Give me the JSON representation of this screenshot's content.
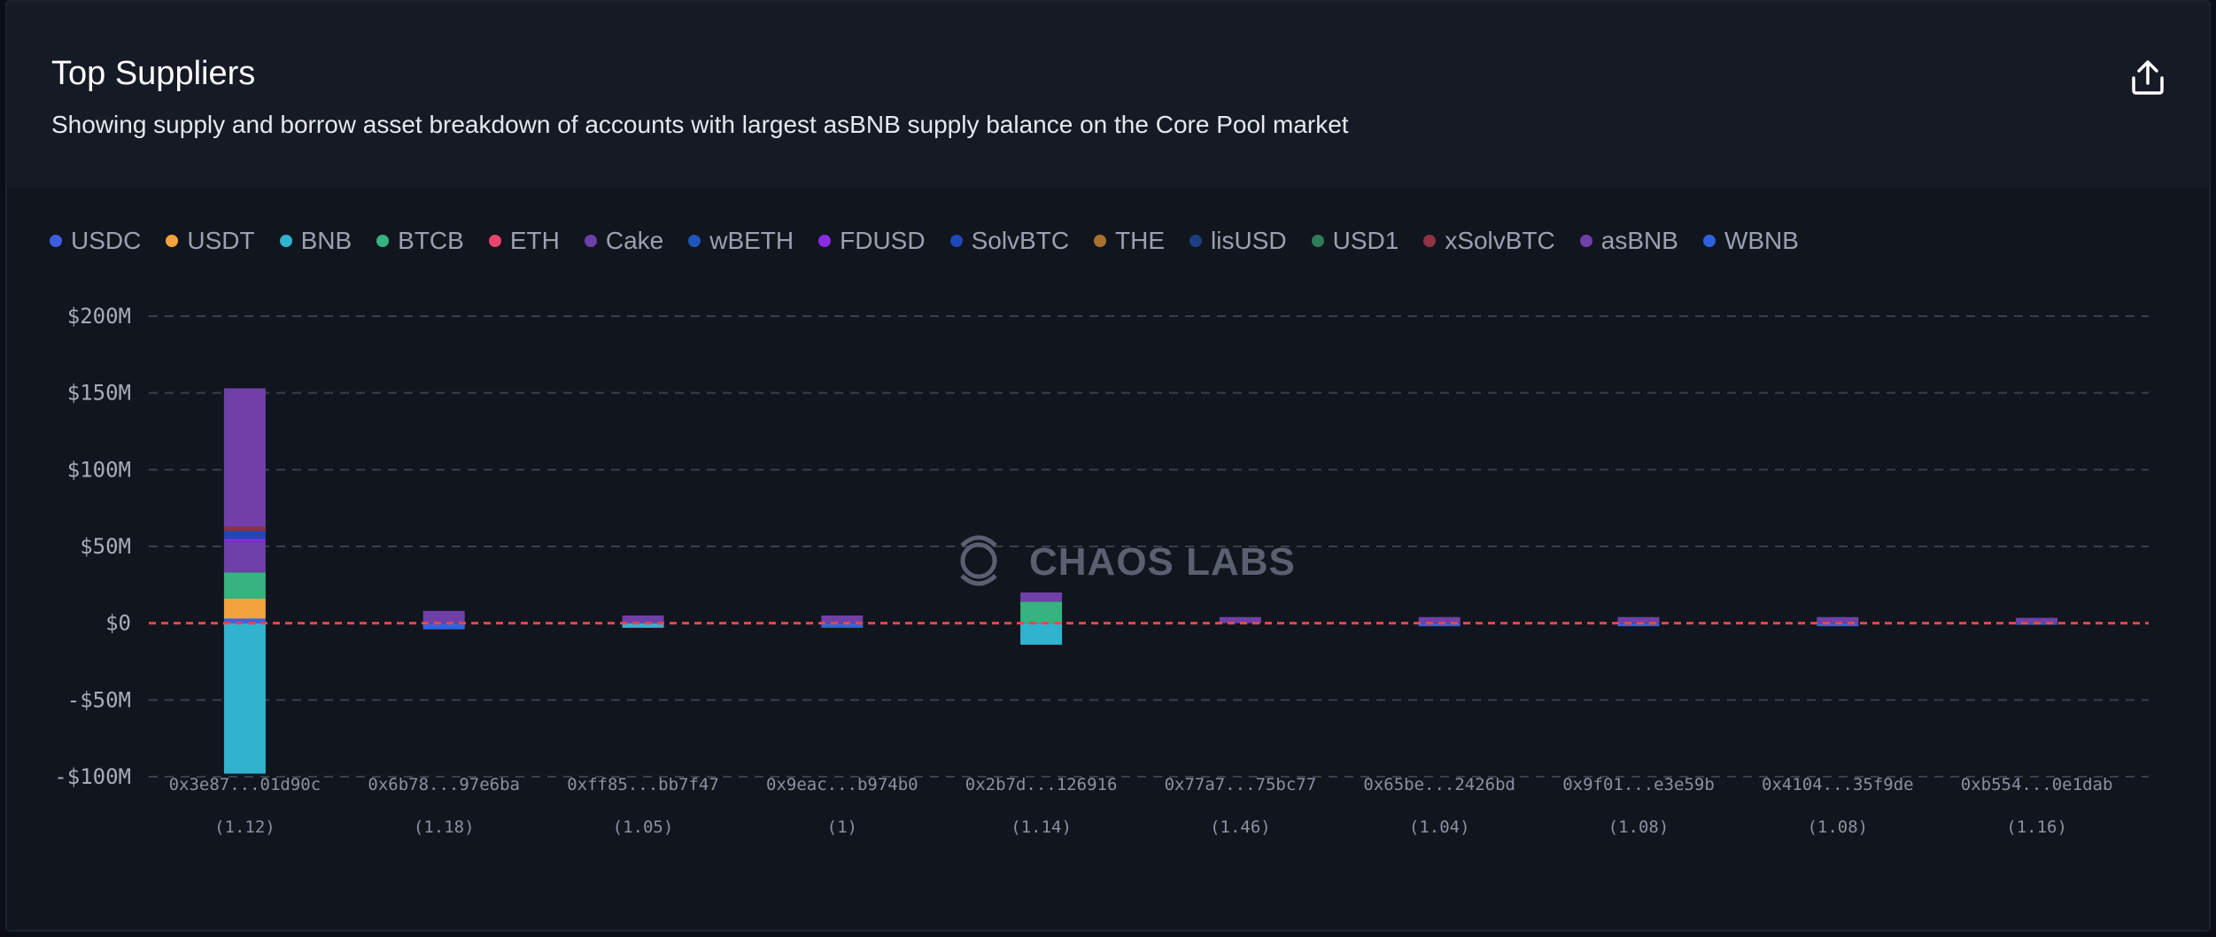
{
  "header": {
    "title": "Top Suppliers",
    "subtitle": "Showing supply and borrow asset breakdown of accounts with largest asBNB supply balance on the Core Pool market",
    "share_icon": "share-upload-icon"
  },
  "watermark": "CHAOS LABS",
  "legend": [
    {
      "name": "USDC",
      "color": "#3b5fe0"
    },
    {
      "name": "USDT",
      "color": "#f3a33b"
    },
    {
      "name": "BNB",
      "color": "#2fb3cf"
    },
    {
      "name": "BTCB",
      "color": "#36b37e"
    },
    {
      "name": "ETH",
      "color": "#e5456a"
    },
    {
      "name": "Cake",
      "color": "#6e3fa8"
    },
    {
      "name": "wBETH",
      "color": "#1e56b8"
    },
    {
      "name": "FDUSD",
      "color": "#8a2be2"
    },
    {
      "name": "SolvBTC",
      "color": "#1f48b8"
    },
    {
      "name": "THE",
      "color": "#a8722e"
    },
    {
      "name": "lisUSD",
      "color": "#1d3f80"
    },
    {
      "name": "USD1",
      "color": "#2e7d57"
    },
    {
      "name": "xSolvBTC",
      "color": "#8e3346"
    },
    {
      "name": "asBNB",
      "color": "#7040a8"
    },
    {
      "name": "WBNB",
      "color": "#2f62e0"
    }
  ],
  "chart_data": {
    "type": "bar",
    "stacked": true,
    "title": "Top Suppliers",
    "ylim": [
      -100000000,
      200000000
    ],
    "yticks": [
      200000000,
      150000000,
      100000000,
      50000000,
      0,
      -50000000,
      -100000000
    ],
    "ytick_labels": [
      "$200M",
      "$150M",
      "$100M",
      "$50M",
      "$0",
      "-$50M",
      "-$100M"
    ],
    "categories": [
      "0x3e87...01d90c",
      "0x6b78...97e6ba",
      "0xff85...bb7f47",
      "0x9eac...b974b0",
      "0x2b7d...126916",
      "0x77a7...75bc77",
      "0x65be...2426bd",
      "0x9f01...e3e59b",
      "0x4104...35f9de",
      "0xb554...0e1dab"
    ],
    "health_factors": [
      "(1.12)",
      "(1.18)",
      "(1.05)",
      "(1)",
      "(1.14)",
      "(1.46)",
      "(1.04)",
      "(1.08)",
      "(1.08)",
      "(1.16)"
    ],
    "zero_line": "red dashed",
    "grid": true,
    "legend_position": "top-left",
    "series": [
      {
        "name": "USDC",
        "values": [
          3000000,
          0,
          0,
          0,
          0,
          0,
          0,
          0,
          0,
          0
        ]
      },
      {
        "name": "USDT",
        "values": [
          13000000,
          0,
          0,
          0,
          0,
          0,
          0,
          0,
          0,
          0
        ]
      },
      {
        "name": "BNB",
        "values": [
          -98000000,
          0,
          -3000000,
          0,
          -14000000,
          0,
          0,
          0,
          0,
          0
        ]
      },
      {
        "name": "BTCB",
        "values": [
          17000000,
          0,
          0,
          0,
          14000000,
          0,
          0,
          0,
          0,
          0
        ]
      },
      {
        "name": "Cake",
        "values": [
          20000000,
          0,
          0,
          0,
          0,
          0,
          0,
          0,
          0,
          0
        ]
      },
      {
        "name": "FDUSD",
        "values": [
          2000000,
          0,
          0,
          0,
          0,
          0,
          0,
          0,
          0,
          0
        ]
      },
      {
        "name": "SolvBTC",
        "values": [
          5000000,
          0,
          0,
          0,
          0,
          0,
          0,
          0,
          0,
          0
        ]
      },
      {
        "name": "WBNB",
        "values": [
          0,
          -4000000,
          0,
          -3000000,
          0,
          0,
          -2000000,
          -2000000,
          -2000000,
          -1000000
        ]
      },
      {
        "name": "xSolvBTC",
        "values": [
          3000000,
          0,
          0,
          0,
          0,
          0,
          0,
          0,
          0,
          0
        ]
      },
      {
        "name": "asBNB",
        "values": [
          90000000,
          8000000,
          5000000,
          5000000,
          6000000,
          4000000,
          4000000,
          4000000,
          4000000,
          3500000
        ]
      }
    ]
  }
}
